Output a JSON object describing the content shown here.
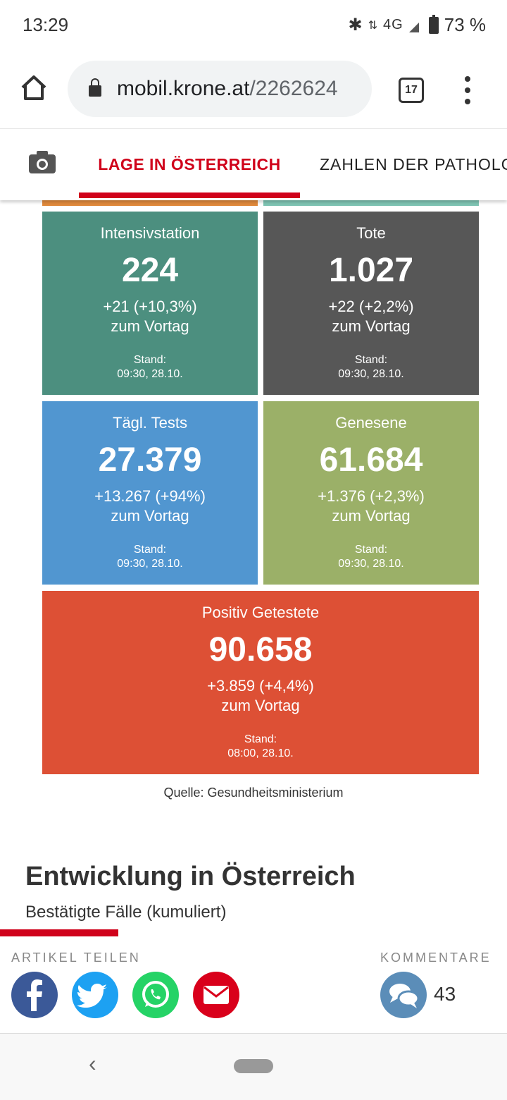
{
  "status_bar": {
    "time": "13:29",
    "network": "4G",
    "battery": "73 %"
  },
  "browser": {
    "url_host": "mobil.krone.at",
    "url_path": "/2262624",
    "tab_count": "17"
  },
  "tabs": [
    {
      "label": "LAGE IN ÖSTERREICH",
      "active": true
    },
    {
      "label": "ZAHLEN DER PATHOLOGIE",
      "active": false
    }
  ],
  "cards": {
    "intensiv": {
      "label": "Intensivstation",
      "value": "224",
      "delta": "+21 (+10,3%)",
      "sub": "zum Vortag",
      "stand": "Stand:",
      "time": "09:30, 28.10.",
      "color": "#4c8f7f"
    },
    "tote": {
      "label": "Tote",
      "value": "1.027",
      "delta": "+22 (+2,2%)",
      "sub": "zum Vortag",
      "stand": "Stand:",
      "time": "09:30, 28.10.",
      "color": "#575757"
    },
    "tests": {
      "label": "Tägl. Tests",
      "value": "27.379",
      "delta": "+13.267 (+94%)",
      "sub": "zum Vortag",
      "stand": "Stand:",
      "time": "09:30, 28.10.",
      "color": "#5196d0"
    },
    "genesene": {
      "label": "Genesene",
      "value": "61.684",
      "delta": "+1.376 (+2,3%)",
      "sub": "zum Vortag",
      "stand": "Stand:",
      "time": "09:30, 28.10.",
      "color": "#9bb068"
    },
    "positiv": {
      "label": "Positiv Getestete",
      "value": "90.658",
      "delta": "+3.859 (+4,4%)",
      "sub": "zum Vortag",
      "stand": "Stand:",
      "time": "08:00, 28.10.",
      "color": "#dd5035"
    }
  },
  "source": "Quelle: Gesundheitsministerium",
  "section": {
    "title": "Entwicklung in Österreich",
    "subtitle": "Bestätigte Fälle (kumuliert)"
  },
  "share": {
    "heading": "ARTIKEL TEILEN",
    "comments_heading": "KOMMENTARE",
    "comments_count": "43"
  },
  "icons": [
    "home-icon",
    "lock-icon",
    "tabs-icon",
    "more-vert-icon",
    "camera-icon",
    "facebook-icon",
    "twitter-icon",
    "whatsapp-icon",
    "email-icon",
    "comments-icon",
    "back-icon"
  ]
}
